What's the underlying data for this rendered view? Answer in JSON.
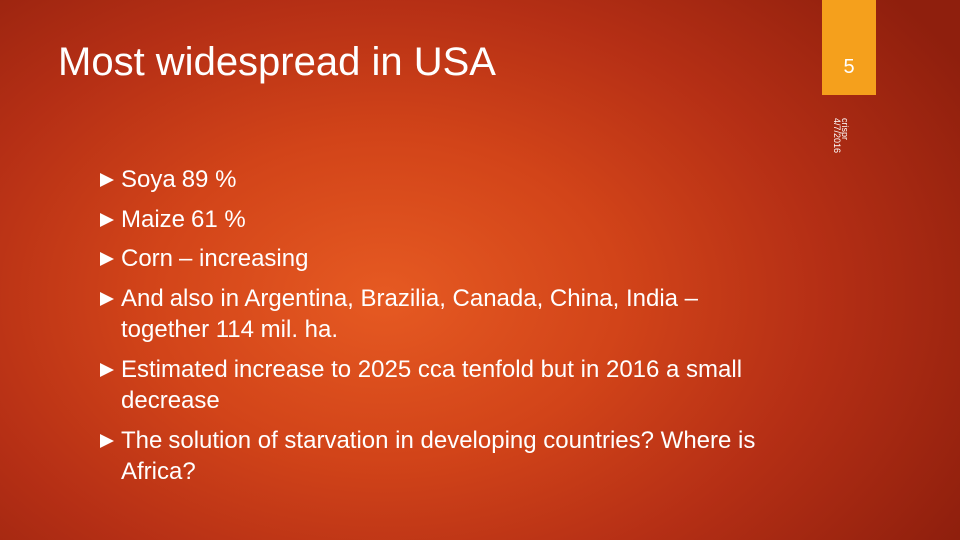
{
  "slide": {
    "title": "Most widespread in USA",
    "page_number": "5",
    "author": "crispr",
    "date": "4/7/2016",
    "accent_color": "#f5a01c"
  },
  "bullets": [
    {
      "lead": "Soya",
      "text": "89 %"
    },
    {
      "lead": "Maize",
      "text": "61 %"
    },
    {
      "lead": "Corn",
      "text": "– increasing"
    },
    {
      "lead": "And",
      "text": "also in Argentina, Brazilia, Canada, China, India – together 114 mil. ha."
    },
    {
      "lead": "Estimated",
      "text": "increase to 2025 cca tenfold but in 2016 a small decrease"
    },
    {
      "lead": "The",
      "text": "solution of starvation in developing countries? Where is Africa?"
    }
  ]
}
